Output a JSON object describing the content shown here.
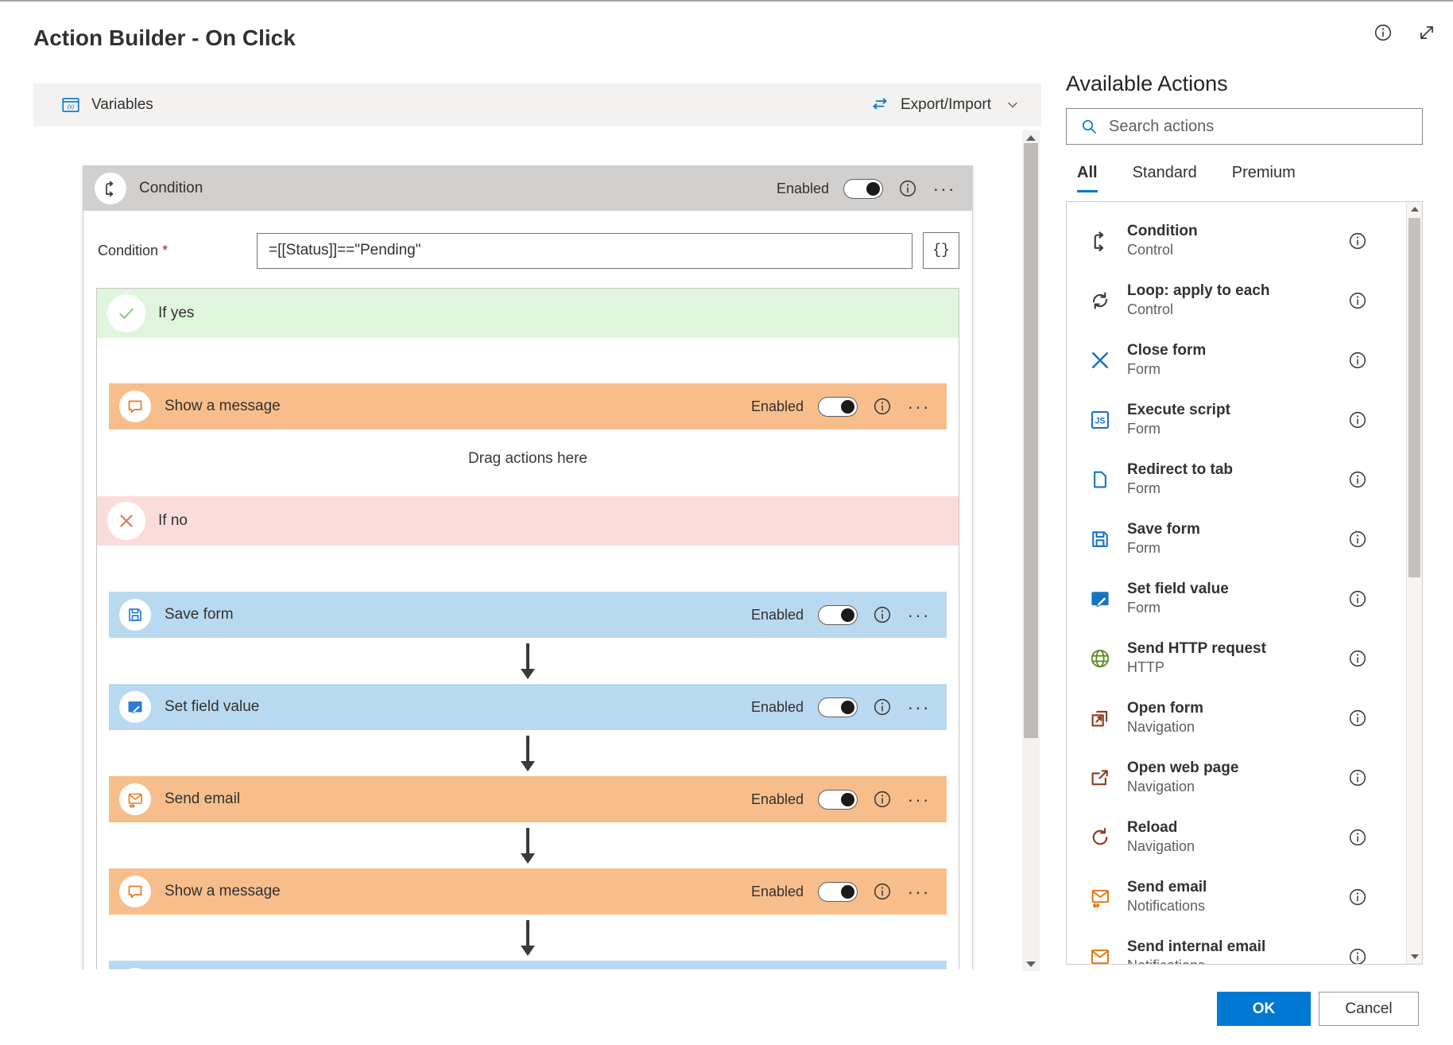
{
  "page": {
    "title": "Action Builder - On Click"
  },
  "header_icons": {
    "info": "info",
    "expand": "expand"
  },
  "toolbar": {
    "variables_label": "Variables",
    "variables_icon": "variables",
    "export_import_label": "Export/Import",
    "export_icon": "swap",
    "chevron_icon": "chevron-down"
  },
  "flow": {
    "title": "Condition",
    "header_icon": "branch",
    "enabled_label": "Enabled",
    "condition_label": "Condition",
    "required_mark": "*",
    "condition_value": "=[[Status]]==\"Pending\"",
    "expression_button_label": "{}",
    "if_yes_label": "If yes",
    "if_yes_icon": "check",
    "if_no_label": "If no",
    "if_no_icon": "xmark",
    "drag_hint": "Drag actions here",
    "yes_actions": [
      {
        "label": "Show a message",
        "icon": "message",
        "color": "orange"
      }
    ],
    "no_actions": [
      {
        "label": "Save form",
        "icon": "save",
        "color": "blue"
      },
      {
        "label": "Set field value",
        "icon": "setfield",
        "color": "blue"
      },
      {
        "label": "Send email",
        "icon": "email",
        "color": "orange"
      },
      {
        "label": "Show a message",
        "icon": "message",
        "color": "orange"
      },
      {
        "color": "blue",
        "partial": true
      }
    ]
  },
  "panel": {
    "title": "Available Actions",
    "search_placeholder": "Search actions",
    "search_icon": "search",
    "tabs": [
      {
        "label": "All",
        "active": true
      },
      {
        "label": "Standard",
        "active": false
      },
      {
        "label": "Premium",
        "active": false
      }
    ],
    "actions": [
      {
        "name": "Condition",
        "category": "Control",
        "icon": "branch"
      },
      {
        "name": "Loop: apply to each",
        "category": "Control",
        "icon": "loop"
      },
      {
        "name": "Close form",
        "category": "Form",
        "icon": "close"
      },
      {
        "name": "Execute script",
        "category": "Form",
        "icon": "js"
      },
      {
        "name": "Redirect to tab",
        "category": "Form",
        "icon": "tabpage"
      },
      {
        "name": "Save form",
        "category": "Form",
        "icon": "save"
      },
      {
        "name": "Set field value",
        "category": "Form",
        "icon": "setfield"
      },
      {
        "name": "Send HTTP request",
        "category": "HTTP",
        "icon": "globe"
      },
      {
        "name": "Open form",
        "category": "Navigation",
        "icon": "openform"
      },
      {
        "name": "Open web page",
        "category": "Navigation",
        "icon": "openweb"
      },
      {
        "name": "Reload",
        "category": "Navigation",
        "icon": "reload"
      },
      {
        "name": "Send email",
        "category": "Notifications",
        "icon": "email"
      },
      {
        "name": "Send internal email",
        "category": "Notifications",
        "icon": "email2"
      }
    ]
  },
  "footer": {
    "ok_label": "OK",
    "cancel_label": "Cancel"
  },
  "colors": {
    "accent": "#0078d4",
    "if_yes_green": "#dff6dd",
    "if_no_pink": "#fcdcdb",
    "action_orange": "#f7be8b",
    "action_blue": "#b9d9f0",
    "header_gray": "#d2d0ce"
  }
}
